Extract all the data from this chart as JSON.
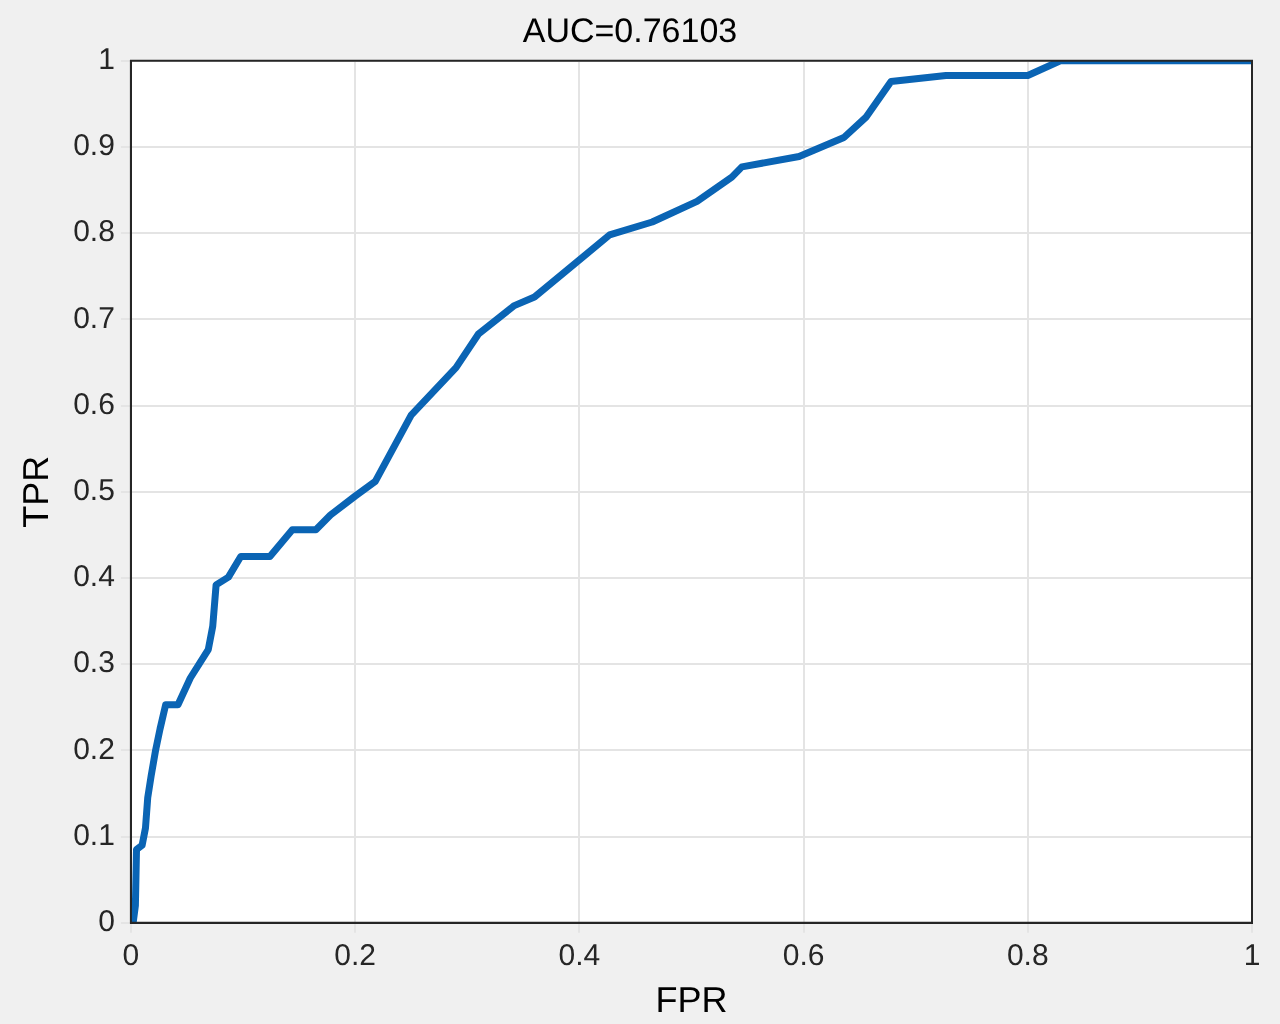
{
  "chart_data": {
    "type": "line",
    "title": "AUC=0.76103",
    "xlabel": "FPR",
    "ylabel": "TPR",
    "series": [
      {
        "color": "#0a64b4",
        "x": [
          0,
          0.002,
          0.004,
          0.005,
          0.01,
          0.013,
          0.015,
          0.018,
          0.022,
          0.026,
          0.031,
          0.042,
          0.053,
          0.069,
          0.073,
          0.076,
          0.087,
          0.098,
          0.124,
          0.144,
          0.165,
          0.178,
          0.2,
          0.218,
          0.25,
          0.29,
          0.31,
          0.342,
          0.36,
          0.427,
          0.465,
          0.505,
          0.536,
          0.545,
          0.596,
          0.636,
          0.656,
          0.678,
          0.727,
          0.8,
          0.829,
          1
        ],
        "values": [
          0,
          0,
          0.02,
          0.085,
          0.09,
          0.11,
          0.145,
          0.17,
          0.2,
          0.225,
          0.253,
          0.253,
          0.284,
          0.317,
          0.344,
          0.392,
          0.401,
          0.425,
          0.425,
          0.456,
          0.456,
          0.473,
          0.495,
          0.512,
          0.589,
          0.644,
          0.683,
          0.716,
          0.726,
          0.798,
          0.813,
          0.837,
          0.865,
          0.877,
          0.889,
          0.911,
          0.935,
          0.976,
          0.983,
          0.983,
          1,
          1
        ]
      }
    ],
    "xlim": [
      0,
      1
    ],
    "ylim": [
      0,
      1
    ],
    "xticks": [
      0,
      0.2,
      0.4,
      0.6,
      0.8,
      1
    ],
    "yticks": [
      0,
      0.1,
      0.2,
      0.3,
      0.4,
      0.5,
      0.6,
      0.7,
      0.8,
      0.9,
      1
    ],
    "grid": true,
    "marker": "none",
    "line_style": "solid"
  }
}
